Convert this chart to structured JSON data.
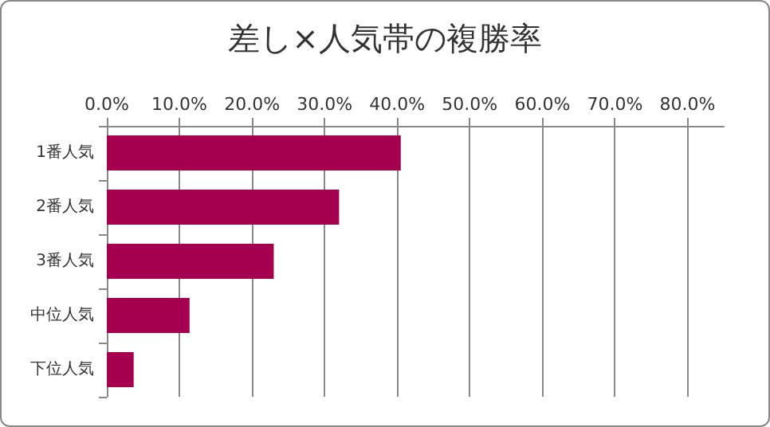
{
  "chart_data": {
    "type": "bar",
    "orientation": "horizontal",
    "title": "差し×人気帯の複勝率",
    "categories": [
      "1番人気",
      "2番人気",
      "3番人気",
      "中位人気",
      "下位人気"
    ],
    "values": [
      40.5,
      32.0,
      23.0,
      11.4,
      3.7
    ],
    "color": "#a50050",
    "xlim": [
      0,
      85
    ],
    "xticks": [
      {
        "value": 0,
        "label": "0.0%"
      },
      {
        "value": 10,
        "label": "10.0%"
      },
      {
        "value": 20,
        "label": "20.0%"
      },
      {
        "value": 30,
        "label": "30.0%"
      },
      {
        "value": 40,
        "label": "40.0%"
      },
      {
        "value": 50,
        "label": "50.0%"
      },
      {
        "value": 60,
        "label": "60.0%"
      },
      {
        "value": 70,
        "label": "70.0%"
      },
      {
        "value": 80,
        "label": "80.0%"
      }
    ],
    "grid": "x"
  }
}
